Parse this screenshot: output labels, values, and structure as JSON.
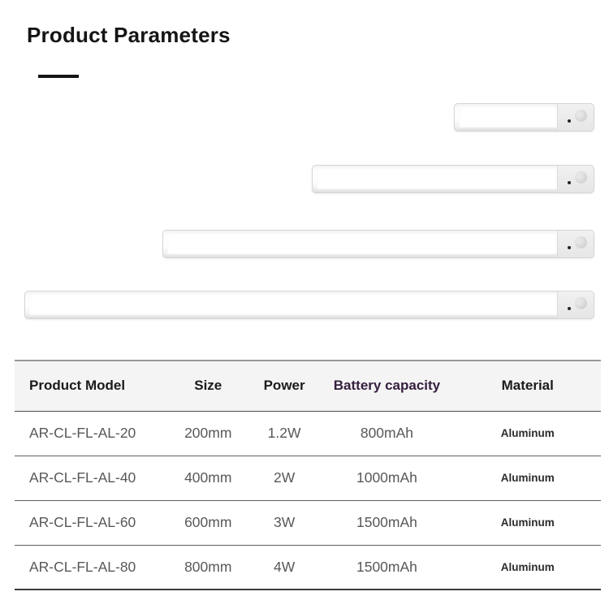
{
  "page": {
    "title": "Product Parameters"
  },
  "gallery": {
    "items": [
      "light-bar-short",
      "light-bar-medium",
      "light-bar-long",
      "light-bar-extra-long"
    ],
    "icons": [
      "motion-sensor-icon",
      "indicator-led-icon"
    ]
  },
  "table": {
    "columns": [
      "Product Model",
      "Size",
      "Power",
      "Battery capacity",
      "Material"
    ],
    "rows": [
      [
        "AR-CL-FL-AL-20",
        "200mm",
        "1.2W",
        "800mAh",
        "Aluminum"
      ],
      [
        "AR-CL-FL-AL-40",
        "400mm",
        "2W",
        "1000mAh",
        "Aluminum"
      ],
      [
        "AR-CL-FL-AL-60",
        "600mm",
        "3W",
        "1500mAh",
        "Aluminum"
      ],
      [
        "AR-CL-FL-AL-80",
        "800mm",
        "4W",
        "1500mAh",
        "Aluminum"
      ]
    ]
  },
  "colors": {
    "title_text": "#151515",
    "header_text": "#1b1b1b",
    "battery_header_text": "#34203e",
    "body_text": "#58585a",
    "table_header_bg": "#f5f4f5",
    "bar_frame": "#d5d5d5"
  }
}
